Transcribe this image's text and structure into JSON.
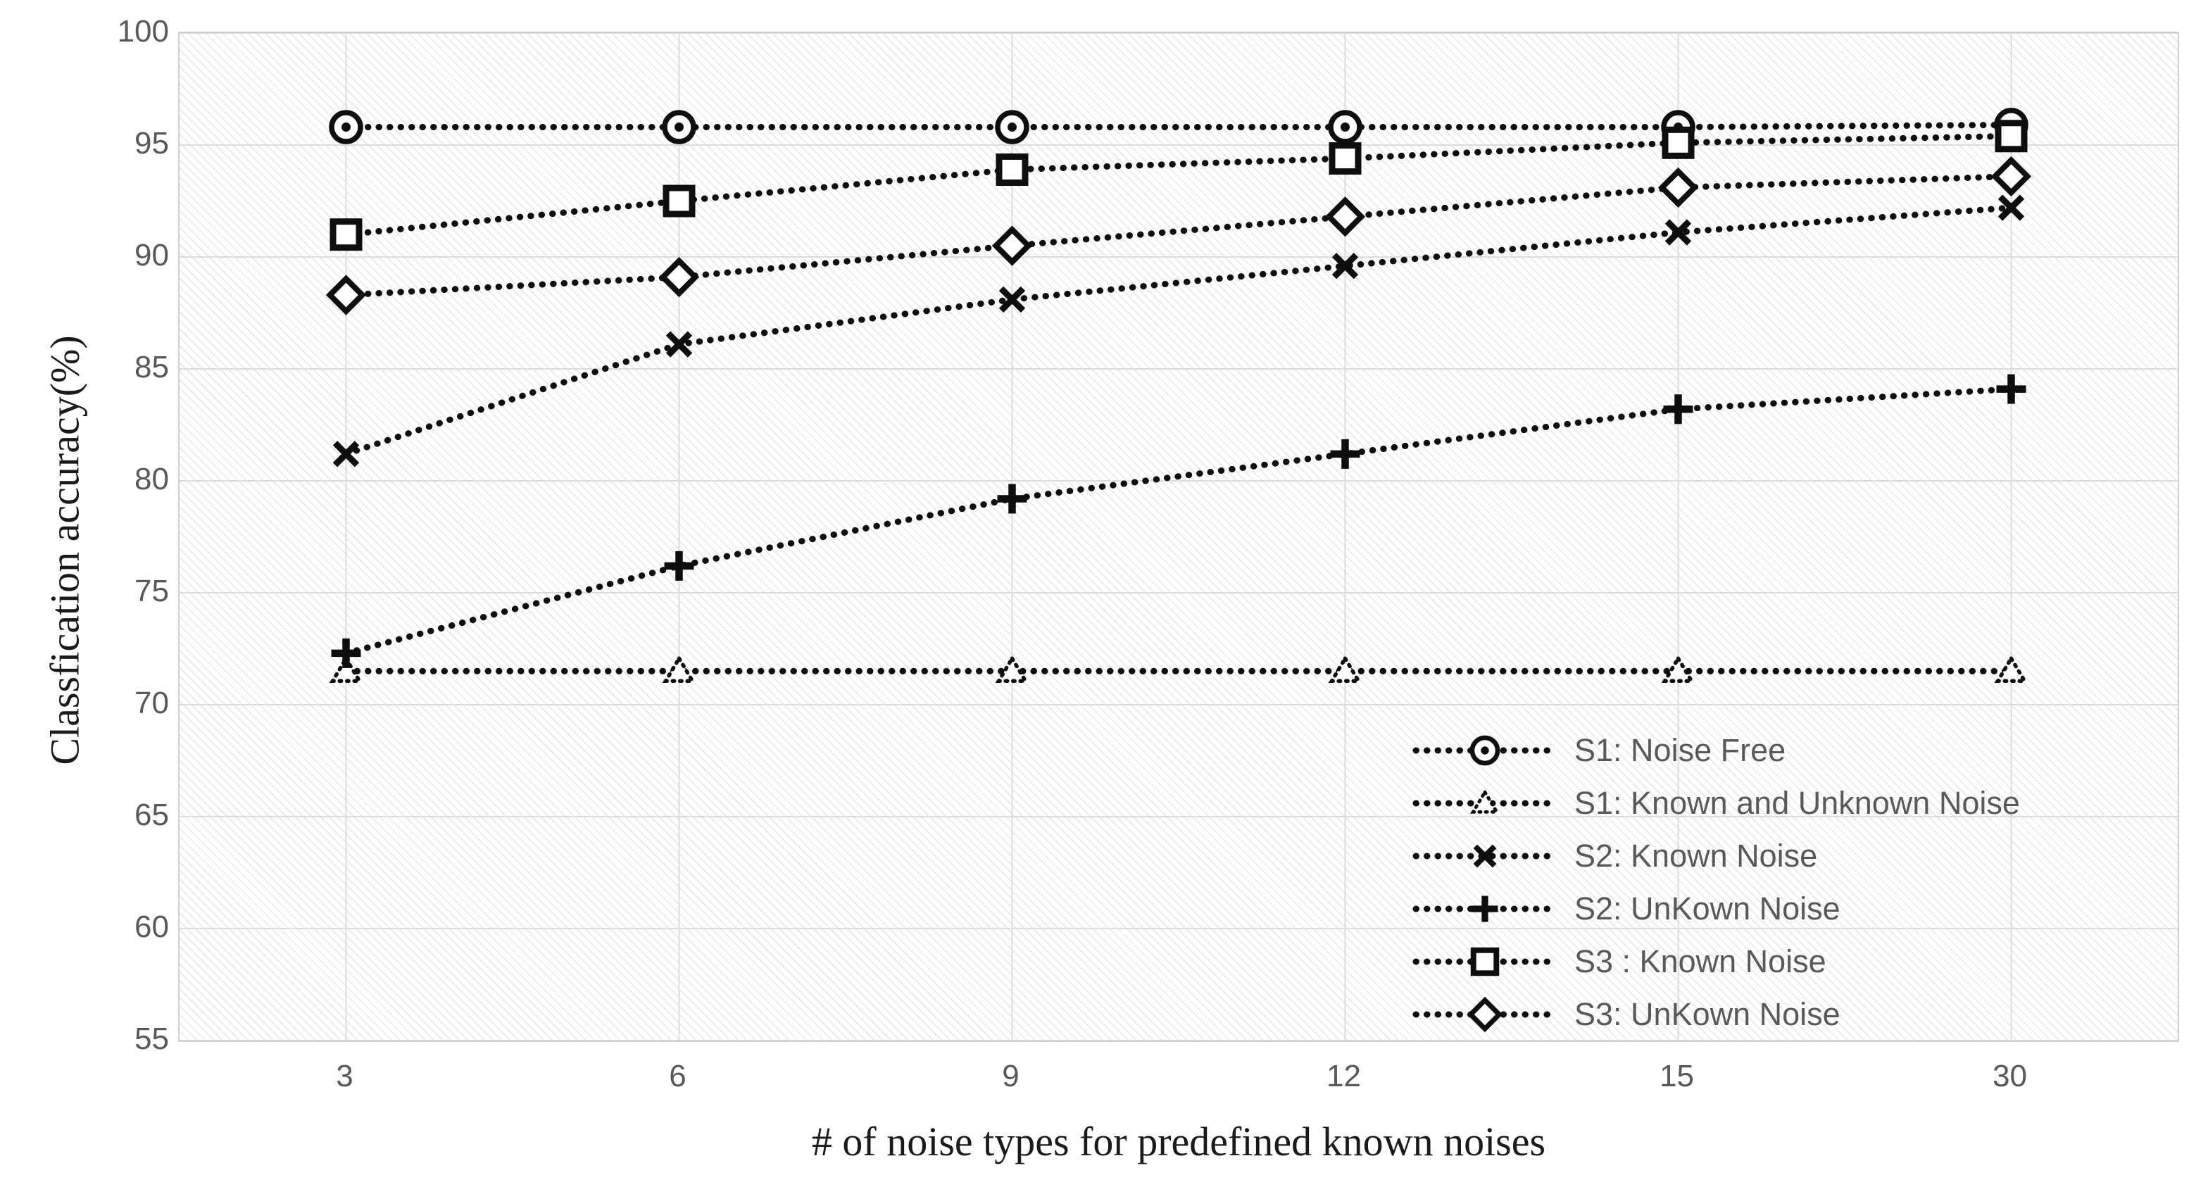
{
  "chart_data": {
    "type": "line",
    "title": "",
    "xlabel": "# of noise types for predefined known noises",
    "ylabel": "Classfication accuracy(%)",
    "x_categories": [
      "3",
      "6",
      "9",
      "12",
      "15",
      "30"
    ],
    "y_ticks": [
      100,
      95,
      90,
      85,
      80,
      75,
      70,
      65,
      60,
      55
    ],
    "ylim": [
      55,
      100
    ],
    "grid": true,
    "line_style": "dotted",
    "legend_position": "inside-bottom-right",
    "series": [
      {
        "name": "S1: Noise Free",
        "marker": "circle-dot",
        "values": [
          95.8,
          95.8,
          95.8,
          95.8,
          95.8,
          95.9
        ]
      },
      {
        "name": "S1: Known and Unknown Noise",
        "marker": "triangle-dotted",
        "values": [
          71.5,
          71.5,
          71.5,
          71.5,
          71.5,
          71.5
        ]
      },
      {
        "name": "S2: Known Noise",
        "marker": "x-cross",
        "values": [
          81.2,
          86.1,
          88.1,
          89.6,
          91.1,
          92.2
        ]
      },
      {
        "name": "S2: UnKown Noise",
        "marker": "plus",
        "values": [
          72.3,
          76.2,
          79.2,
          81.2,
          83.2,
          84.1
        ]
      },
      {
        "name": "S3 : Known Noise",
        "marker": "square",
        "values": [
          91.0,
          92.5,
          93.9,
          94.4,
          95.1,
          95.4
        ]
      },
      {
        "name": "S3: UnKown Noise",
        "marker": "diamond",
        "values": [
          88.3,
          89.1,
          90.5,
          91.8,
          93.1,
          93.6
        ]
      }
    ],
    "colors": {
      "series": "#0e0e0e",
      "gridline": "#dcdcdc",
      "tick_text": "#595959",
      "legend_text": "#595959",
      "axis_title_text": "#1a1a1a",
      "plot_border": "#cfcfcf",
      "hatch_line": "#e9e9e9"
    }
  }
}
